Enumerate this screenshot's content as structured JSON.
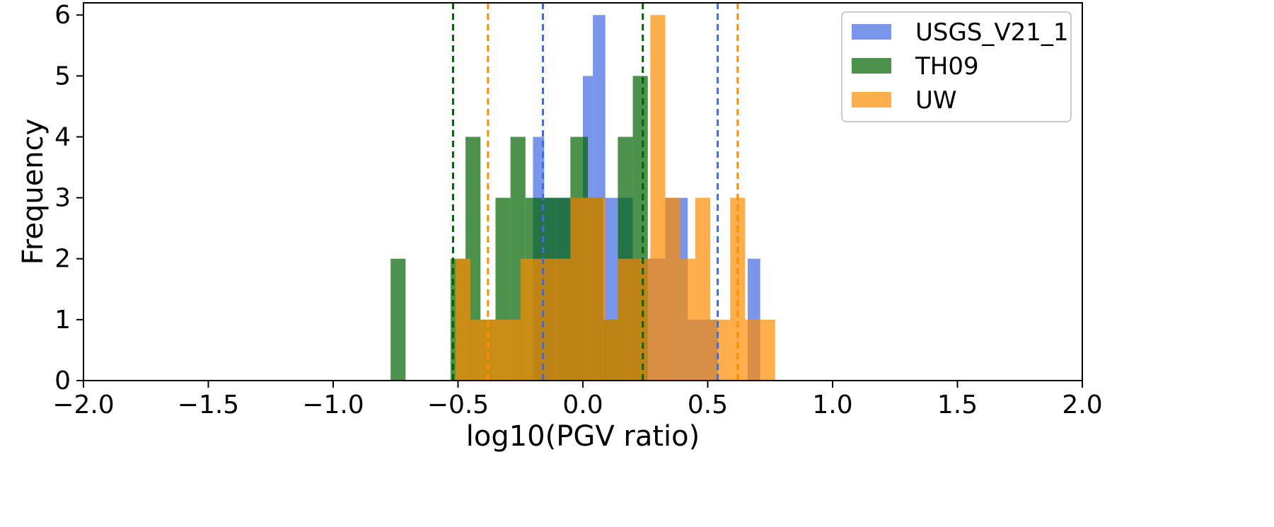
{
  "chart_data": {
    "type": "histogram",
    "title": "",
    "xlabel": "log10(PGV ratio)",
    "ylabel": "Frequency",
    "xlim": [
      -2.0,
      2.0
    ],
    "ylim": [
      0,
      6.2
    ],
    "xticks": [
      "−2.0",
      "−1.5",
      "−1.0",
      "−0.5",
      "0.0",
      "0.5",
      "1.0",
      "1.5",
      "2.0"
    ],
    "xtick_values": [
      -2.0,
      -1.5,
      -1.0,
      -0.5,
      0.0,
      0.5,
      1.0,
      1.5,
      2.0
    ],
    "yticks": [
      "0",
      "1",
      "2",
      "3",
      "4",
      "5",
      "6"
    ],
    "ytick_values": [
      0,
      1,
      2,
      3,
      4,
      5,
      6
    ],
    "grid": false,
    "legend_position": "top-right",
    "series": [
      {
        "name": "USGS_V21_1",
        "color": "#4169e1",
        "opacity": 0.7,
        "bins": [
          {
            "x0": -0.2,
            "x1": -0.155,
            "count": 4
          },
          {
            "x0": -0.155,
            "x1": -0.11,
            "count": 3
          },
          {
            "x0": -0.11,
            "x1": 0.0,
            "count": 3
          },
          {
            "x0": 0.0,
            "x1": 0.04,
            "count": 5
          },
          {
            "x0": 0.04,
            "x1": 0.09,
            "count": 6
          },
          {
            "x0": 0.09,
            "x1": 0.2,
            "count": 3
          },
          {
            "x0": 0.2,
            "x1": 0.26,
            "count": 2
          },
          {
            "x0": 0.26,
            "x1": 0.33,
            "count": 2
          },
          {
            "x0": 0.33,
            "x1": 0.42,
            "count": 3
          },
          {
            "x0": 0.42,
            "x1": 0.5,
            "count": 1
          },
          {
            "x0": 0.5,
            "x1": 0.54,
            "count": 1
          },
          {
            "x0": 0.66,
            "x1": 0.71,
            "count": 2
          }
        ],
        "dashed_lines": [
          -0.16,
          0.54
        ]
      },
      {
        "name": "TH09",
        "color": "#006400",
        "opacity": 0.7,
        "bins": [
          {
            "x0": -0.77,
            "x1": -0.71,
            "count": 2
          },
          {
            "x0": -0.53,
            "x1": -0.47,
            "count": 2
          },
          {
            "x0": -0.47,
            "x1": -0.41,
            "count": 4
          },
          {
            "x0": -0.41,
            "x1": -0.35,
            "count": 1
          },
          {
            "x0": -0.35,
            "x1": -0.29,
            "count": 3
          },
          {
            "x0": -0.29,
            "x1": -0.23,
            "count": 4
          },
          {
            "x0": -0.23,
            "x1": -0.17,
            "count": 3
          },
          {
            "x0": -0.17,
            "x1": -0.11,
            "count": 3
          },
          {
            "x0": -0.11,
            "x1": -0.05,
            "count": 3
          },
          {
            "x0": -0.05,
            "x1": 0.02,
            "count": 4
          },
          {
            "x0": 0.02,
            "x1": 0.08,
            "count": 3
          },
          {
            "x0": 0.08,
            "x1": 0.14,
            "count": 1
          },
          {
            "x0": 0.14,
            "x1": 0.2,
            "count": 4
          },
          {
            "x0": 0.2,
            "x1": 0.26,
            "count": 5
          }
        ],
        "dashed_lines": [
          -0.52,
          0.24
        ]
      },
      {
        "name": "UW",
        "color": "#ff8c00",
        "opacity": 0.7,
        "bins": [
          {
            "x0": -0.51,
            "x1": -0.45,
            "count": 2
          },
          {
            "x0": -0.45,
            "x1": -0.25,
            "count": 1
          },
          {
            "x0": -0.25,
            "x1": -0.05,
            "count": 2
          },
          {
            "x0": -0.05,
            "x1": 0.01,
            "count": 3
          },
          {
            "x0": 0.01,
            "x1": 0.09,
            "count": 3
          },
          {
            "x0": 0.09,
            "x1": 0.14,
            "count": 1
          },
          {
            "x0": 0.14,
            "x1": 0.27,
            "count": 2
          },
          {
            "x0": 0.27,
            "x1": 0.33,
            "count": 6
          },
          {
            "x0": 0.33,
            "x1": 0.39,
            "count": 3
          },
          {
            "x0": 0.39,
            "x1": 0.45,
            "count": 2
          },
          {
            "x0": 0.45,
            "x1": 0.51,
            "count": 3
          },
          {
            "x0": 0.51,
            "x1": 0.59,
            "count": 1
          },
          {
            "x0": 0.59,
            "x1": 0.65,
            "count": 3
          },
          {
            "x0": 0.65,
            "x1": 0.77,
            "count": 1
          }
        ],
        "dashed_lines": [
          -0.38,
          0.62
        ]
      }
    ]
  }
}
